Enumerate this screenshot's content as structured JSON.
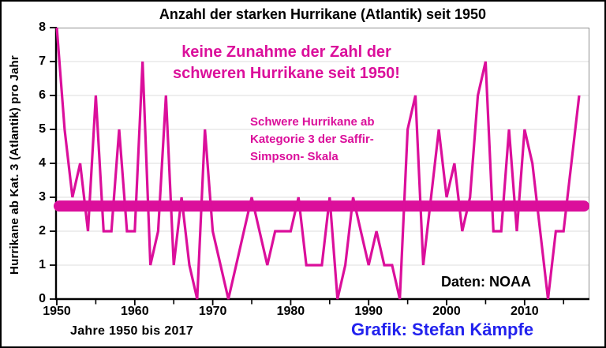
{
  "title": "Anzahl der starken Hurrikane (Atlantik) seit 1950",
  "y_axis_label": "Hurrikane ab Kat. 3 (Atlantik) pro Jahr",
  "annotations": {
    "no_increase_line1": "keine Zunahme der Zahl der",
    "no_increase_line2": "schweren Hurrikane seit 1950!",
    "category_note_line1": "Schwere Hurrikane ab",
    "category_note_line2": "Kategorie 3 der Saffir-",
    "category_note_line3": "Simpson- Skala",
    "data_source": "Daten: NOAA",
    "x_axis_caption": "Jahre 1950 bis 2017",
    "credit": "Grafik: Stefan Kämpfe"
  },
  "colors": {
    "line": "#DB0F9B",
    "trend": "#DB0F9B",
    "annotation_text": "#DB0F9B",
    "credit_text": "#2222EE",
    "grid": "#DCDCDC",
    "plot_border": "#909090",
    "axis": "#000000"
  },
  "chart_data": {
    "type": "line",
    "title": "Anzahl der starken Hurrikane (Atlantik) seit 1950",
    "xlabel": "Jahre 1950 bis 2017",
    "ylabel": "Hurrikane ab Kat. 3 (Atlantik) pro Jahr",
    "ylim": [
      0,
      8
    ],
    "xlim": [
      1950,
      2017
    ],
    "grid": "horizontal",
    "legend": "none",
    "x": [
      1950,
      1951,
      1952,
      1953,
      1954,
      1955,
      1956,
      1957,
      1958,
      1959,
      1960,
      1961,
      1962,
      1963,
      1964,
      1965,
      1966,
      1967,
      1968,
      1969,
      1970,
      1971,
      1972,
      1973,
      1974,
      1975,
      1976,
      1977,
      1978,
      1979,
      1980,
      1981,
      1982,
      1983,
      1984,
      1985,
      1986,
      1987,
      1988,
      1989,
      1990,
      1991,
      1992,
      1993,
      1994,
      1995,
      1996,
      1997,
      1998,
      1999,
      2000,
      2001,
      2002,
      2003,
      2004,
      2005,
      2006,
      2007,
      2008,
      2009,
      2010,
      2011,
      2012,
      2013,
      2014,
      2015,
      2016,
      2017
    ],
    "series": [
      {
        "name": "Starke Hurrikane (Kategorie 3+) pro Jahr",
        "values": [
          8,
          5,
          3,
          4,
          2,
          6,
          2,
          2,
          5,
          2,
          2,
          7,
          1,
          2,
          6,
          1,
          3,
          1,
          0,
          5,
          2,
          1,
          0,
          1,
          2,
          3,
          2,
          1,
          2,
          2,
          2,
          3,
          1,
          1,
          1,
          3,
          0,
          1,
          3,
          2,
          1,
          2,
          1,
          1,
          0,
          5,
          6,
          1,
          3,
          5,
          3,
          4,
          2,
          3,
          6,
          7,
          2,
          2,
          5,
          2,
          5,
          4,
          2,
          0,
          2,
          2,
          4,
          6
        ]
      }
    ],
    "trend_line": {
      "type": "horizontal-mean",
      "value": 2.74
    },
    "y_ticks": [
      0,
      1,
      2,
      3,
      4,
      5,
      6,
      7,
      8
    ],
    "x_major_ticks": [
      1950,
      1960,
      1970,
      1980,
      1990,
      2000,
      2010
    ],
    "x_minor_ticks": [
      1955,
      1965,
      1975,
      1985,
      1995,
      2005,
      2015
    ]
  }
}
